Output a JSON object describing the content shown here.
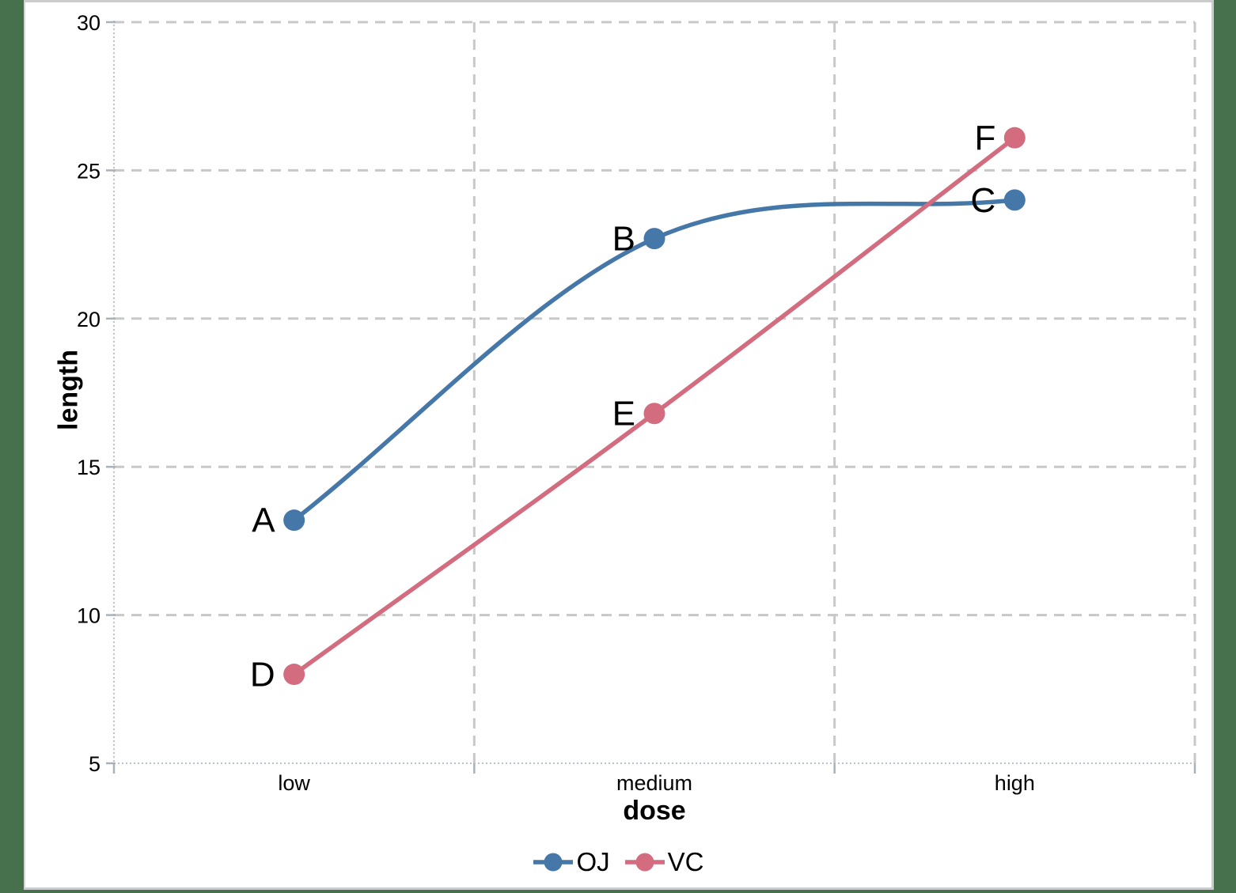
{
  "page": {
    "background_color": "#47704D",
    "canvas_color": "#FFFFFF",
    "frame_color": "#CBCBCB"
  },
  "chart_data": {
    "type": "line",
    "line_shape": "smooth",
    "categories": [
      "low",
      "medium",
      "high"
    ],
    "series": [
      {
        "name": "OJ",
        "color": "#4577A9",
        "values": [
          13.2,
          22.7,
          24.0
        ],
        "point_labels": [
          "A",
          "B",
          "C"
        ]
      },
      {
        "name": "VC",
        "color": "#D26C7E",
        "values": [
          8.0,
          16.8,
          26.1
        ],
        "point_labels": [
          "D",
          "E",
          "F"
        ]
      }
    ],
    "xlabel": "dose",
    "ylabel": "length",
    "ylim": [
      5,
      30
    ],
    "yticks": [
      5,
      10,
      15,
      20,
      25,
      30
    ],
    "grid": "dashed gray horizontal at y ticks and vertical at category boundaries",
    "legend_position": "bottom-center",
    "gridline_color": "#C8C8C8",
    "axis_line_color": "#B9C1CB",
    "tick_color": "#A9B1BB",
    "text_color": "#000000"
  }
}
